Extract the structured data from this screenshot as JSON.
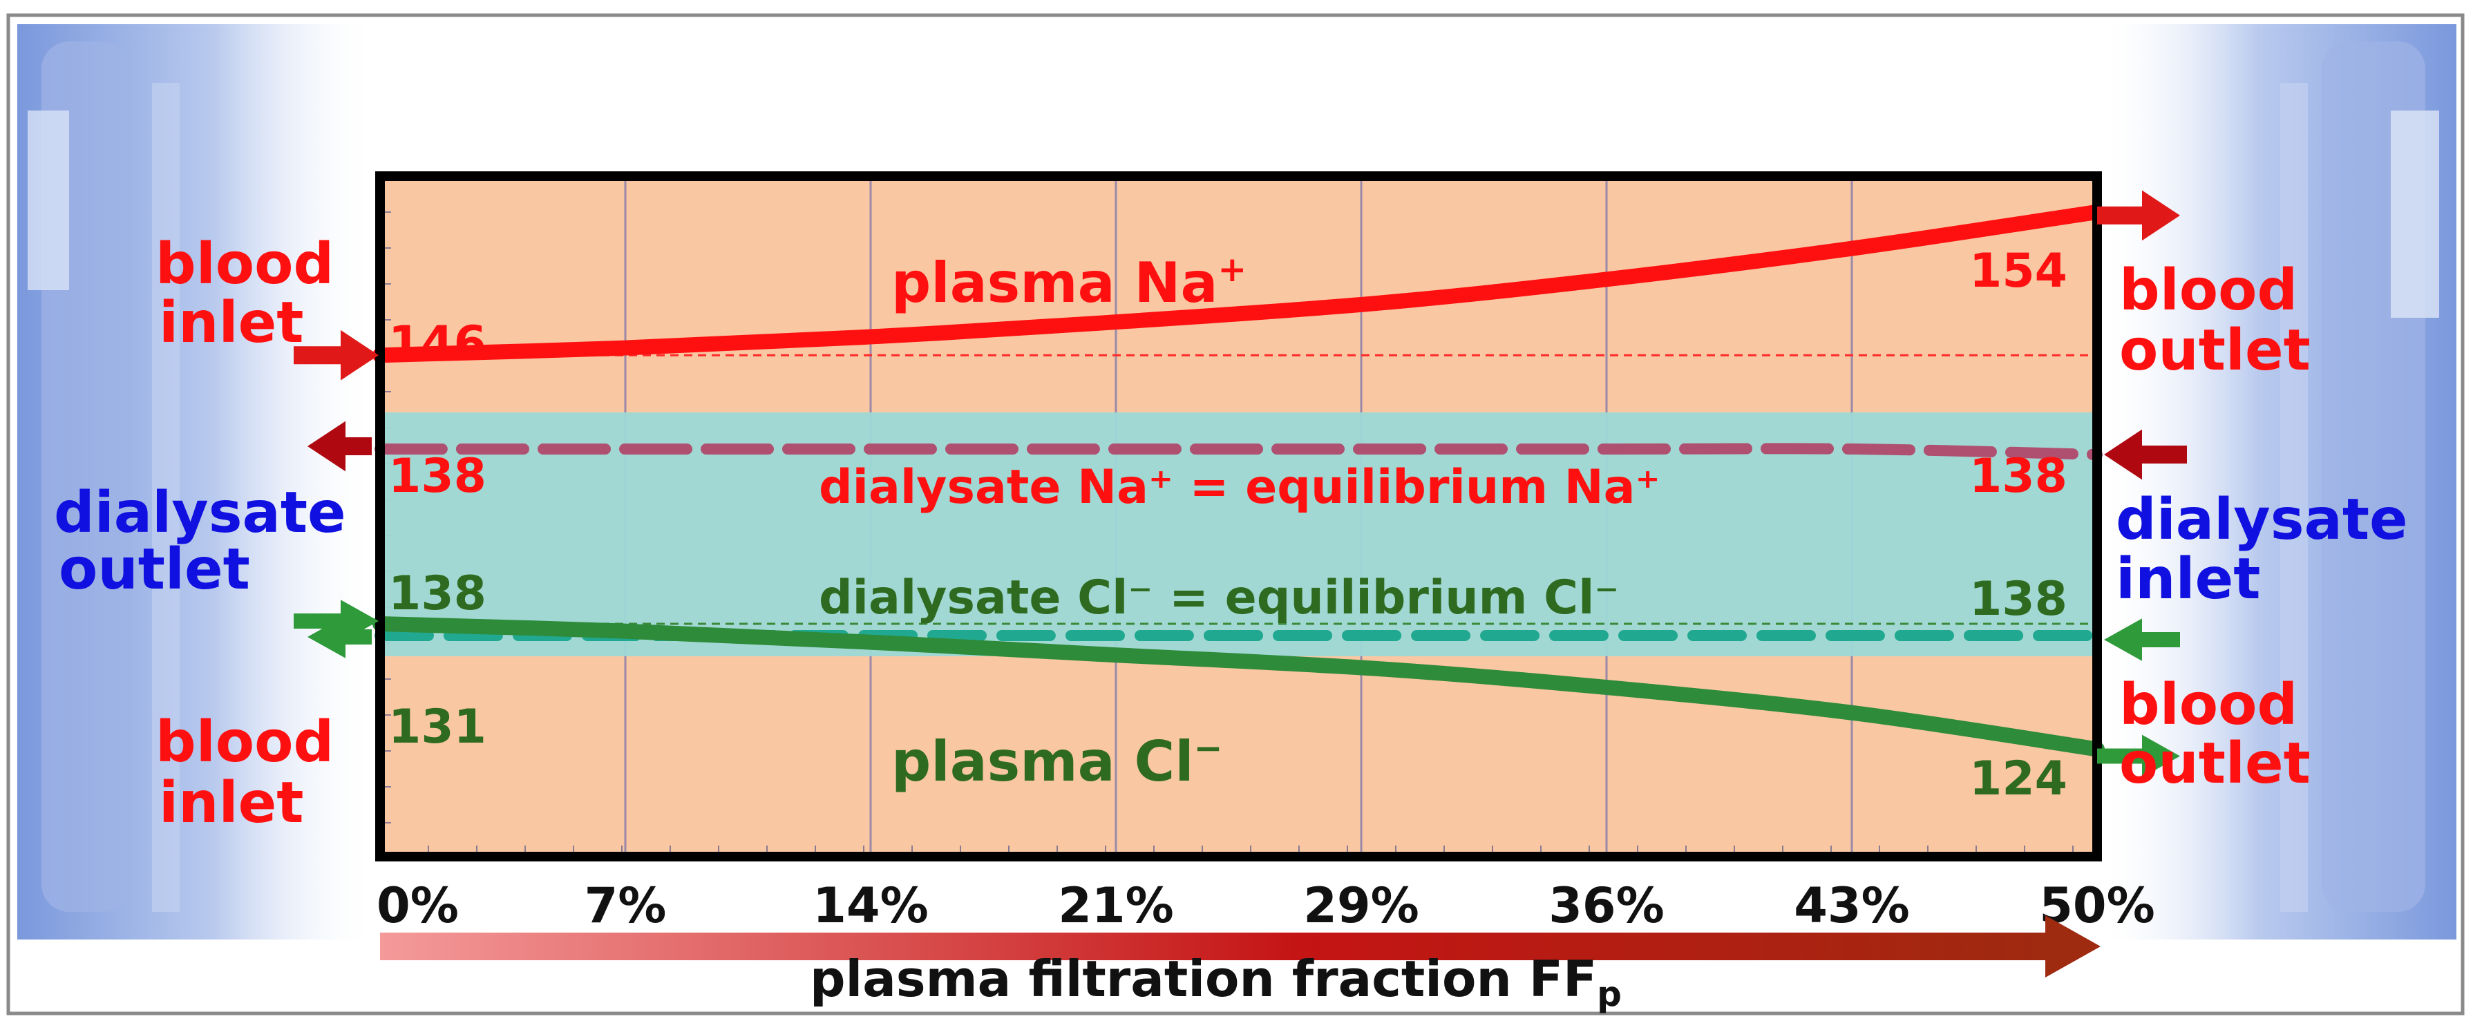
{
  "chart_data": {
    "type": "line",
    "xlabel": "plasma filtration fraction FFp",
    "xlabel_main": "plasma filtration fraction FF",
    "xlabel_sub": "p",
    "x_ticks": [
      "0%",
      "7%",
      "14%",
      "21%",
      "29%",
      "36%",
      "43%",
      "50%"
    ],
    "x": [
      0,
      7,
      14,
      21,
      29,
      36,
      43,
      50
    ],
    "xlim": [
      0,
      50
    ],
    "ylim": [
      118,
      156
    ],
    "grid": true,
    "series": [
      {
        "name": "plasma Na+",
        "label_main": "plasma Na",
        "label_sup": "+",
        "color": "#ff1010",
        "style": "solid",
        "values": [
          146,
          146.4,
          147,
          147.8,
          148.9,
          150.3,
          152.0,
          154
        ]
      },
      {
        "name": "dialysate Na+ = equilibrium Na+",
        "color": "#b05070",
        "style": "dashed",
        "values": [
          138,
          138,
          138,
          138,
          138,
          138,
          138,
          138
        ]
      },
      {
        "name": "dialysate Cl− = equilibrium Cl−",
        "color": "#20a890",
        "style": "dashed",
        "values": [
          138,
          138,
          138,
          138,
          138,
          138,
          138,
          138
        ]
      },
      {
        "name": "plasma Cl−",
        "label_main": "plasma Cl",
        "label_sup": "−",
        "color": "#2e8b3a",
        "style": "solid",
        "values": [
          131,
          130.6,
          130.0,
          129.3,
          128.5,
          127.4,
          126.0,
          124
        ]
      }
    ],
    "value_labels": {
      "na_start": "146",
      "na_end": "154",
      "dna_start": "138",
      "dna_end": "138",
      "dcl_start": "138",
      "dcl_end": "138",
      "cl_start": "131",
      "cl_end": "124"
    },
    "band_labels": {
      "dialysate_na": "dialysate Na⁺ = equilibrium Na⁺",
      "dialysate_cl": "dialysate Cl⁻  =  equilibrium Cl⁻"
    }
  },
  "flow_labels": {
    "blood_inlet_top": [
      "blood",
      "inlet"
    ],
    "blood_outlet_top": [
      "blood",
      "outlet"
    ],
    "dialysate_outlet": [
      "dialysate",
      "outlet"
    ],
    "dialysate_inlet": [
      "dialysate",
      "inlet"
    ],
    "blood_inlet_bottom": [
      "blood",
      "inlet"
    ],
    "blood_outlet_bottom": [
      "blood",
      "outlet"
    ]
  },
  "colors": {
    "plot_bg": "#f9c7a2",
    "band": "#9cd9d6",
    "blood_text": "#ff1010",
    "dialysate_text": "#1010e0",
    "arrow_red": "#e01818",
    "arrow_green": "#2e9a3a",
    "dark_red": "#b00810",
    "axis_arrow_start": "#f49a9a",
    "axis_arrow_end": "#9e2a10"
  }
}
